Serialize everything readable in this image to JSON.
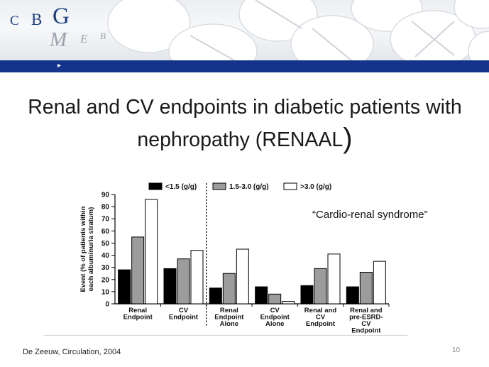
{
  "header": {
    "logo_top": [
      "C",
      "B",
      "G"
    ],
    "logo_bottom": [
      "M",
      "E",
      "B"
    ]
  },
  "slide": {
    "title_main": "Renal and CV endpoints in diabetic patients with nephropathy (RENAAL",
    "title_bracket": ")",
    "annotation": "“Cardio-renal syndrome”",
    "source": "De Zeeuw, Circulation, 2004",
    "page_number": "10"
  },
  "colors": {
    "brand_blue": "#14338a",
    "bar_black": "#000000",
    "bar_gray": "#9c9c9c",
    "bar_white": "#ffffff"
  },
  "chart_data": {
    "type": "bar",
    "ylabel": "Event (% of patients within each albuminuria stratum)",
    "ylim": [
      0,
      90
    ],
    "yticks": [
      0,
      10,
      20,
      30,
      40,
      50,
      60,
      70,
      80,
      90
    ],
    "categories": [
      [
        "Renal",
        "Endpoint"
      ],
      [
        "CV",
        "Endpoint"
      ],
      [
        "Renal",
        "Endpoint",
        "Alone"
      ],
      [
        "CV",
        "Endpoint",
        "Alone"
      ],
      [
        "Renal and",
        "CV",
        "Endpoint"
      ],
      [
        "Renal and",
        "pre-ESRD-",
        "CV",
        "Endpoint"
      ]
    ],
    "series": [
      {
        "name": "<1.5 (g/g)",
        "color": "#000000",
        "values": [
          28,
          29,
          13,
          14,
          15,
          14
        ]
      },
      {
        "name": "1.5-3.0 (g/g)",
        "color": "#9c9c9c",
        "values": [
          55,
          37,
          25,
          8,
          29,
          26
        ]
      },
      {
        "name": ">3.0 (g/g)",
        "color": "#ffffff",
        "values": [
          86,
          44,
          45,
          2,
          41,
          35
        ]
      }
    ],
    "legend_position": "top",
    "grid": false,
    "separator_after_category": 1
  }
}
